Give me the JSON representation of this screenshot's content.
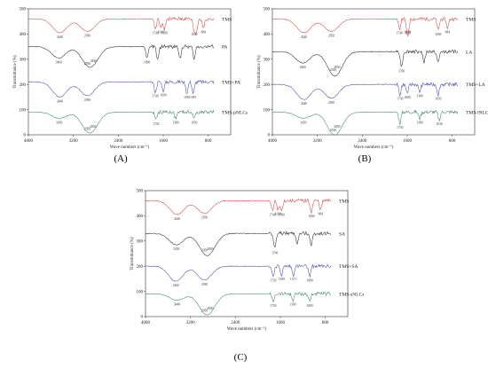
{
  "chart_data": [
    {
      "type": "line",
      "panel_label": "(A)",
      "xlabel": "Wave numbers (cm⁻¹)",
      "ylabel": "Transmittance (%)",
      "x_ticks": [
        4000,
        3200,
        2400,
        1600,
        800
      ],
      "y_ticks": [
        0,
        100,
        200,
        300,
        400,
        500
      ],
      "xlim": [
        4000,
        400
      ],
      "ylim": [
        0,
        500
      ],
      "series": [
        {
          "name": "TMS",
          "color": "#d04848",
          "base": 460,
          "peaks": [
            [
              3440,
              55
            ],
            [
              2950,
              50
            ],
            [
              1740,
              40
            ],
            [
              1640,
              35
            ],
            [
              1580,
              40
            ],
            [
              1050,
              45
            ],
            [
              1010,
              50
            ],
            [
              884,
              35
            ]
          ]
        },
        {
          "name": "PA",
          "color": "#2b2b2b",
          "base": 350,
          "peaks": [
            [
              3460,
              45
            ],
            [
              2950,
              50
            ],
            [
              2840,
              40
            ],
            [
              1890,
              45
            ],
            [
              1700,
              55
            ],
            [
              1300,
              45
            ],
            [
              1050,
              50
            ]
          ]
        },
        {
          "name": "TMS+PA",
          "color": "#4a4ab0",
          "base": 210,
          "peaks": [
            [
              3440,
              60
            ],
            [
              2950,
              55
            ],
            [
              1740,
              40
            ],
            [
              1600,
              35
            ],
            [
              1180,
              45
            ],
            [
              1067,
              45
            ]
          ]
        },
        {
          "name": "TMS-pNLCs",
          "color": "#3e8a6a",
          "base": 90,
          "peaks": [
            [
              3450,
              25
            ],
            [
              2950,
              50
            ],
            [
              2850,
              40
            ],
            [
              1730,
              30
            ],
            [
              1380,
              25
            ],
            [
              1050,
              25
            ]
          ]
        }
      ],
      "peak_labels": [
        {
          "s": 0,
          "text": "3440",
          "x": 3440
        },
        {
          "s": 0,
          "text": "2950",
          "x": 2950
        },
        {
          "s": 0,
          "text": "1740",
          "x": 1740
        },
        {
          "s": 0,
          "text": "1640",
          "x": 1640
        },
        {
          "s": 0,
          "text": "1580",
          "x": 1580
        },
        {
          "s": 0,
          "text": "1050",
          "x": 1050
        },
        {
          "s": 0,
          "text": "884",
          "x": 884
        },
        {
          "s": 1,
          "text": "3460",
          "x": 3460
        },
        {
          "s": 1,
          "text": "2950",
          "x": 2950
        },
        {
          "s": 1,
          "text": "2840",
          "x": 2840
        },
        {
          "s": 1,
          "text": "1890",
          "x": 1890
        },
        {
          "s": 2,
          "text": "3440",
          "x": 3440
        },
        {
          "s": 2,
          "text": "2950",
          "x": 2950
        },
        {
          "s": 2,
          "text": "1740",
          "x": 1740
        },
        {
          "s": 2,
          "text": "1600",
          "x": 1600
        },
        {
          "s": 2,
          "text": "1180",
          "x": 1180
        },
        {
          "s": 2,
          "text": "1067",
          "x": 1067
        },
        {
          "s": 3,
          "text": "3450",
          "x": 3450
        },
        {
          "s": 3,
          "text": "2950",
          "x": 2950
        },
        {
          "s": 3,
          "text": "2850",
          "x": 2850
        },
        {
          "s": 3,
          "text": "1730",
          "x": 1730
        },
        {
          "s": 3,
          "text": "1380",
          "x": 1380
        },
        {
          "s": 3,
          "text": "1050",
          "x": 1050
        }
      ]
    },
    {
      "type": "line",
      "panel_label": "(B)",
      "xlabel": "Wave numbers (cm⁻¹)",
      "ylabel": "Transmittance (%)",
      "x_ticks": [
        4000,
        3200,
        2400,
        1600,
        800
      ],
      "y_ticks": [
        0,
        100,
        200,
        300,
        400,
        500
      ],
      "xlim": [
        4000,
        400
      ],
      "ylim": [
        0,
        500
      ],
      "series": [
        {
          "name": "TMS",
          "color": "#d04848",
          "base": 460,
          "peaks": [
            [
              3440,
              55
            ],
            [
              2950,
              50
            ],
            [
              1740,
              40
            ],
            [
              1600,
              35
            ],
            [
              1587,
              40
            ],
            [
              1050,
              45
            ],
            [
              884,
              35
            ]
          ]
        },
        {
          "name": "LA",
          "color": "#2b2b2b",
          "base": 330,
          "peaks": [
            [
              3460,
              45
            ],
            [
              2920,
              55
            ],
            [
              2850,
              45
            ],
            [
              1700,
              60
            ],
            [
              1300,
              40
            ],
            [
              1050,
              45
            ]
          ]
        },
        {
          "name": "TMS+LA",
          "color": "#4a4ab0",
          "base": 200,
          "peaks": [
            [
              3440,
              60
            ],
            [
              2950,
              55
            ],
            [
              1730,
              40
            ],
            [
              1600,
              35
            ],
            [
              1380,
              30
            ],
            [
              1050,
              40
            ]
          ]
        },
        {
          "name": "TMS-lNLCs",
          "color": "#3e8a6a",
          "base": 90,
          "peaks": [
            [
              3450,
              25
            ],
            [
              2920,
              55
            ],
            [
              2850,
              40
            ],
            [
              1730,
              45
            ],
            [
              1380,
              25
            ],
            [
              1030,
              30
            ]
          ]
        }
      ],
      "peak_labels": [
        {
          "s": 0,
          "text": "3440",
          "x": 3440
        },
        {
          "s": 0,
          "text": "2950",
          "x": 2950
        },
        {
          "s": 0,
          "text": "1740",
          "x": 1740
        },
        {
          "s": 0,
          "text": "1600",
          "x": 1600
        },
        {
          "s": 0,
          "text": "1587",
          "x": 1587
        },
        {
          "s": 0,
          "text": "1050",
          "x": 1050
        },
        {
          "s": 0,
          "text": "884",
          "x": 884
        },
        {
          "s": 1,
          "text": "3460",
          "x": 3460
        },
        {
          "s": 1,
          "text": "2920",
          "x": 2920
        },
        {
          "s": 1,
          "text": "2850",
          "x": 2850
        },
        {
          "s": 1,
          "text": "1700",
          "x": 1700
        },
        {
          "s": 2,
          "text": "3440",
          "x": 3440
        },
        {
          "s": 2,
          "text": "2950",
          "x": 2950
        },
        {
          "s": 2,
          "text": "1730",
          "x": 1730
        },
        {
          "s": 2,
          "text": "1600",
          "x": 1600
        },
        {
          "s": 2,
          "text": "1380",
          "x": 1380
        },
        {
          "s": 2,
          "text": "1050",
          "x": 1050
        },
        {
          "s": 3,
          "text": "3450",
          "x": 3450
        },
        {
          "s": 3,
          "text": "2920",
          "x": 2920
        },
        {
          "s": 3,
          "text": "2850",
          "x": 2850
        },
        {
          "s": 3,
          "text": "1730",
          "x": 1730
        },
        {
          "s": 3,
          "text": "1380",
          "x": 1380
        },
        {
          "s": 3,
          "text": "1030",
          "x": 1030
        }
      ]
    },
    {
      "type": "line",
      "panel_label": "(C)",
      "xlabel": "Wave numbers (cm⁻¹)",
      "ylabel": "Transmittance (%)",
      "x_ticks": [
        4000,
        3200,
        2400,
        1600,
        800
      ],
      "y_ticks": [
        0,
        100,
        200,
        300,
        400,
        500
      ],
      "xlim": [
        4000,
        400
      ],
      "ylim": [
        0,
        500
      ],
      "series": [
        {
          "name": "TMS",
          "color": "#d04848",
          "base": 460,
          "peaks": [
            [
              3440,
              55
            ],
            [
              2950,
              50
            ],
            [
              1740,
              40
            ],
            [
              1640,
              35
            ],
            [
              1580,
              40
            ],
            [
              1050,
              45
            ],
            [
              884,
              35
            ]
          ]
        },
        {
          "name": "SA",
          "color": "#2b2b2b",
          "base": 330,
          "peaks": [
            [
              3450,
              45
            ],
            [
              2950,
              50
            ],
            [
              2850,
              45
            ],
            [
              1700,
              60
            ],
            [
              1300,
              40
            ],
            [
              1050,
              45
            ]
          ]
        },
        {
          "name": "TMS+SA",
          "color": "#4a4ab0",
          "base": 200,
          "peaks": [
            [
              3460,
              60
            ],
            [
              2950,
              55
            ],
            [
              1730,
              40
            ],
            [
              1580,
              35
            ],
            [
              1371,
              35
            ],
            [
              1080,
              40
            ]
          ]
        },
        {
          "name": "TMS-sNLCs",
          "color": "#3e8a6a",
          "base": 90,
          "peaks": [
            [
              3440,
              25
            ],
            [
              2950,
              50
            ],
            [
              2850,
              40
            ],
            [
              1730,
              30
            ],
            [
              1380,
              25
            ],
            [
              1080,
              30
            ]
          ]
        }
      ],
      "peak_labels": [
        {
          "s": 0,
          "text": "3440",
          "x": 3440
        },
        {
          "s": 0,
          "text": "2950",
          "x": 2950
        },
        {
          "s": 0,
          "text": "1740",
          "x": 1740
        },
        {
          "s": 0,
          "text": "1640",
          "x": 1640
        },
        {
          "s": 0,
          "text": "1580",
          "x": 1580
        },
        {
          "s": 0,
          "text": "1050",
          "x": 1050
        },
        {
          "s": 0,
          "text": "884",
          "x": 884
        },
        {
          "s": 1,
          "text": "3450",
          "x": 3450
        },
        {
          "s": 1,
          "text": "2950",
          "x": 2950
        },
        {
          "s": 1,
          "text": "2850",
          "x": 2850
        },
        {
          "s": 1,
          "text": "1700",
          "x": 1700
        },
        {
          "s": 2,
          "text": "3460",
          "x": 3460
        },
        {
          "s": 2,
          "text": "2950",
          "x": 2950
        },
        {
          "s": 2,
          "text": "1730",
          "x": 1730
        },
        {
          "s": 2,
          "text": "1580",
          "x": 1580
        },
        {
          "s": 2,
          "text": "1371",
          "x": 1371
        },
        {
          "s": 2,
          "text": "1080",
          "x": 1080
        },
        {
          "s": 3,
          "text": "3440",
          "x": 3440
        },
        {
          "s": 3,
          "text": "2950",
          "x": 2950
        },
        {
          "s": 3,
          "text": "2850",
          "x": 2850
        },
        {
          "s": 3,
          "text": "1730",
          "x": 1730
        },
        {
          "s": 3,
          "text": "1380",
          "x": 1380
        },
        {
          "s": 3,
          "text": "1080",
          "x": 1080
        }
      ]
    }
  ]
}
